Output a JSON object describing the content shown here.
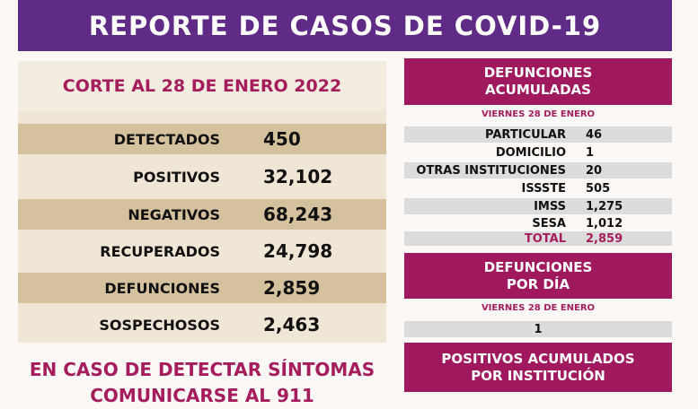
{
  "header": {
    "title": "REPORTE DE CASOS DE COVID-19"
  },
  "left": {
    "title": "CORTE AL 28 DE ENERO 2022",
    "rows": [
      {
        "label": "DETECTADOS",
        "value": "450"
      },
      {
        "label": "POSITIVOS",
        "value": "32,102"
      },
      {
        "label": "NEGATIVOS",
        "value": "68,243"
      },
      {
        "label": "RECUPERADOS",
        "value": "24,798"
      },
      {
        "label": "DEFUNCIONES",
        "value": "2,859"
      },
      {
        "label": "SOSPECHOSOS",
        "value": "2,463"
      }
    ],
    "cta_line1": "EN CASO DE DETECTAR SÍNTOMAS",
    "cta_line2": "COMUNICARSE AL 911"
  },
  "right": {
    "acum": {
      "title1": "DEFUNCIONES",
      "title2": "ACUMULADAS",
      "date": "VIERNES 28 DE ENERO",
      "rows": [
        {
          "label": "PARTICULAR",
          "value": "46"
        },
        {
          "label": "DOMICILIO",
          "value": "1"
        },
        {
          "label": "OTRAS INSTITUCIONES",
          "value": "20"
        },
        {
          "label": "ISSSTE",
          "value": "505"
        },
        {
          "label": "IMSS",
          "value": "1,275"
        },
        {
          "label": "SESA",
          "value": "1,012"
        },
        {
          "label": "TOTAL",
          "value": "2,859"
        }
      ]
    },
    "dia": {
      "title1": "DEFUNCIONES",
      "title2": "POR DÍA",
      "date": "VIERNES 28 DE ENERO",
      "value": "1"
    },
    "pos": {
      "title1": "POSITIVOS ACUMULADOS",
      "title2": "POR INSTITUCIÓN"
    }
  },
  "colors": {
    "purple": "#5f2b86",
    "magenta": "#a0195f",
    "tan": "#d5c19d"
  }
}
